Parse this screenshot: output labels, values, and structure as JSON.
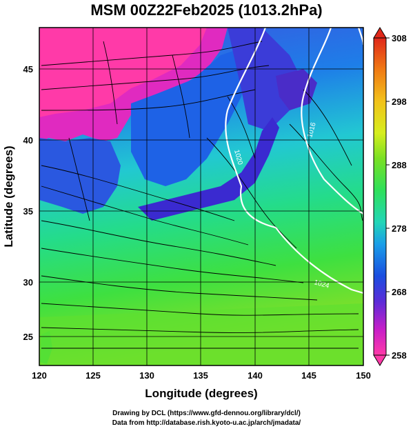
{
  "title": "MSM 00Z22Feb2025 (1013.2hPa)",
  "footer": {
    "line1": "Drawing by DCL (https://www.gfd-dennou.org/library/dcl/)",
    "line2": "Data from http://database.rish.kyoto-u.ac.jp/arch/jmadata/"
  },
  "axes": {
    "xlabel": "Longitude (degrees)",
    "ylabel": "Latitude  (degrees)",
    "x_ticks": [
      "120",
      "125",
      "130",
      "135",
      "140",
      "145",
      "150"
    ],
    "y_ticks": [
      "45",
      "40",
      "35",
      "30",
      "25"
    ],
    "xlim": [
      120,
      150
    ],
    "ylim": [
      22.4,
      47.6
    ]
  },
  "colorbar": {
    "ticks": [
      "308",
      "298",
      "288",
      "278",
      "268",
      "258"
    ],
    "min": 258,
    "max": 308,
    "colors": [
      "#ff3aa8",
      "#c81ec8",
      "#5a2cd8",
      "#1a4ee0",
      "#1a9ee8",
      "#22d6b6",
      "#2ee05a",
      "#7ae024",
      "#d6ee1e",
      "#f2c21a",
      "#f07a14",
      "#e0281a"
    ]
  },
  "map": {
    "field": "temperature (K) with wind streamlines",
    "contour_labels": [
      "1020",
      "1016",
      "1024"
    ],
    "contour_color": "#ffffff"
  }
}
